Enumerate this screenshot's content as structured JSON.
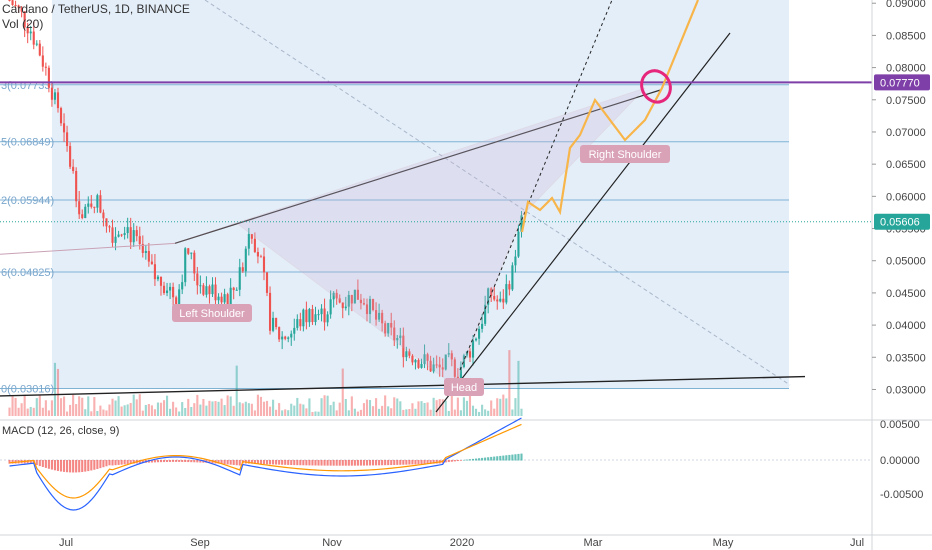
{
  "header": {
    "symbol": "Cardano / TetherUS, 1D, BINANCE",
    "volume_label": "Vol (20)"
  },
  "macd": {
    "label": "MACD (12, 26, close, 9)",
    "ticks": [
      "0.00500",
      "0.00000",
      "-0.00500"
    ]
  },
  "colors": {
    "up": "#26a69a",
    "down": "#ef5350",
    "fib_line": "#7fb3d5",
    "fib_fill": "#dbe8f7",
    "resistance": "#7e3fa8",
    "projection": "#f7b54a",
    "highlight": "#e5267b",
    "label_bg": "#d9a2b7",
    "last_price_bg": "#26a69a"
  },
  "chart_data": {
    "type": "candlestick",
    "x_ticks": [
      "Jul",
      "Sep",
      "Nov",
      "2020",
      "Mar",
      "May",
      "Jul"
    ],
    "y_ticks": [
      "0.09000",
      "0.08500",
      "0.08000",
      "0.07500",
      "0.07000",
      "0.06500",
      "0.06000",
      "0.05500",
      "0.05000",
      "0.04500",
      "0.04000",
      "0.03500",
      "0.03000"
    ],
    "ylim": [
      0.0265,
      0.0905
    ],
    "fib_levels": [
      {
        "label": "3(0.07733)",
        "value": 0.07733
      },
      {
        "label": "5(0.06849)",
        "value": 0.06849
      },
      {
        "label": "2(0.05944)",
        "value": 0.05944
      },
      {
        "label": "6(0.04825)",
        "value": 0.04825
      },
      {
        "label": "0(0.03016)",
        "value": 0.03016
      }
    ],
    "price_tags": [
      {
        "label": "0.07770",
        "value": 0.0777
      },
      {
        "label": "0.05606",
        "value": 0.05606
      }
    ],
    "annotations": [
      "Left Shoulder",
      "Head",
      "Right Shoulder"
    ],
    "price_path": [
      0.0905,
      0.0885,
      0.086,
      0.082,
      0.077,
      0.07,
      0.064,
      0.056,
      0.06,
      0.0575,
      0.054,
      0.056,
      0.053,
      0.05,
      0.047,
      0.0465,
      0.044,
      0.052,
      0.047,
      0.0455,
      0.045,
      0.0445,
      0.047,
      0.056,
      0.05,
      0.04,
      0.038,
      0.039,
      0.041,
      0.042,
      0.0415,
      0.044,
      0.0435,
      0.045,
      0.044,
      0.041,
      0.039,
      0.038,
      0.036,
      0.035,
      0.034,
      0.033,
      0.034,
      0.033,
      0.036,
      0.04,
      0.045,
      0.043,
      0.048,
      0.056
    ]
  }
}
